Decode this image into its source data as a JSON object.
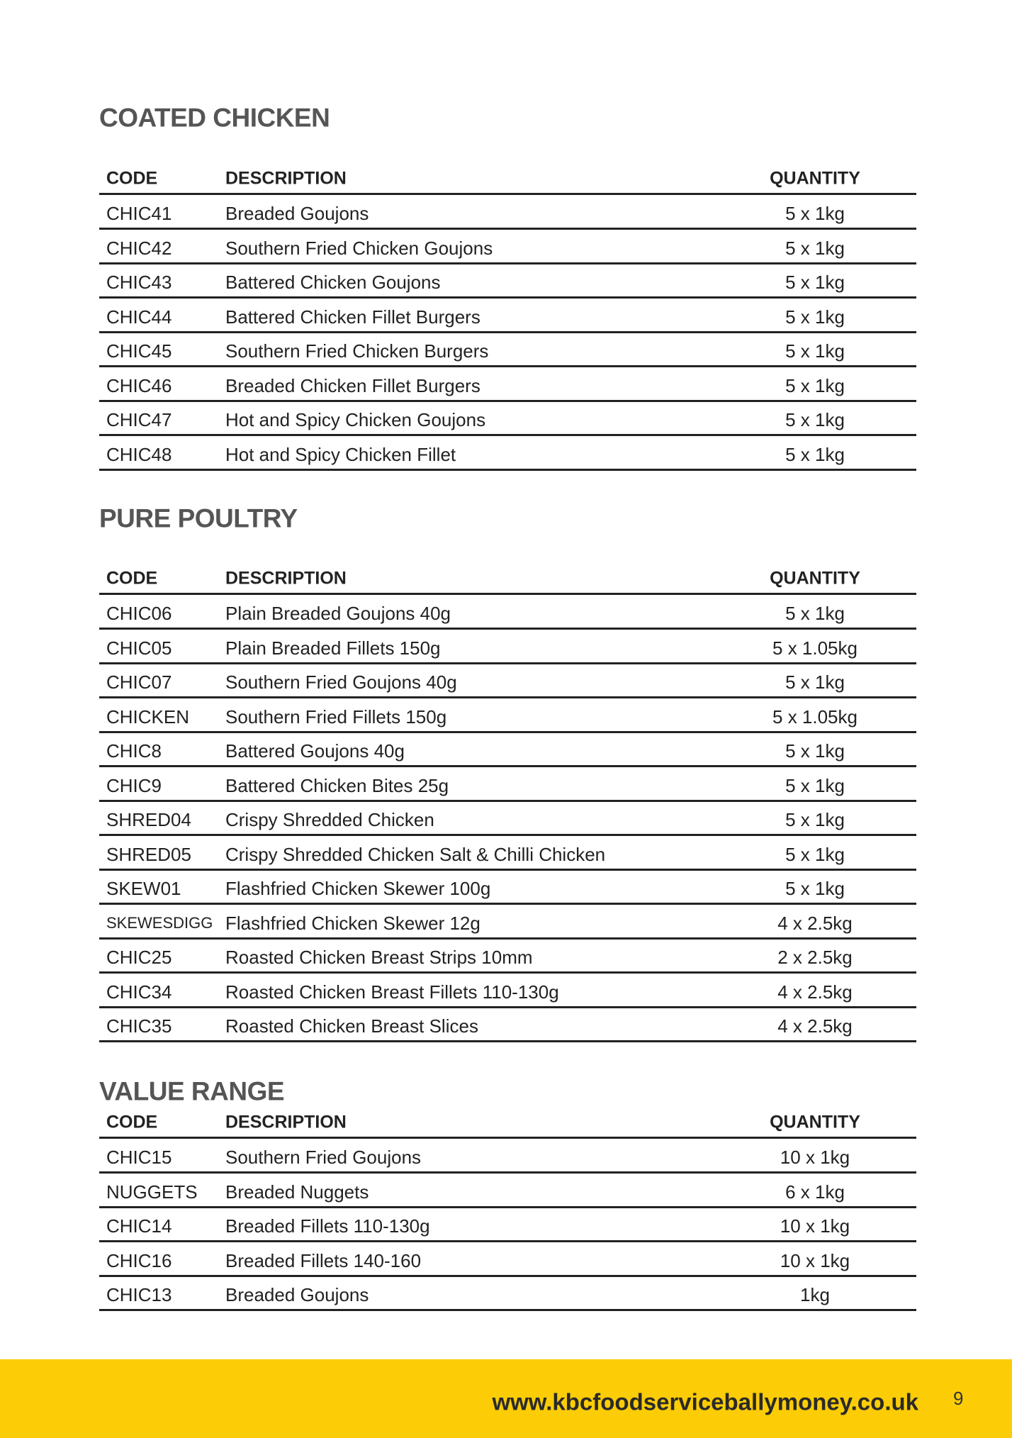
{
  "sections": [
    {
      "title": "COATED CHICKEN",
      "columns": [
        "CODE",
        "DESCRIPTION",
        "QUANTITY"
      ],
      "rows": [
        [
          "CHIC41",
          "Breaded Goujons",
          "5 x 1kg"
        ],
        [
          "CHIC42",
          "Southern Fried Chicken Goujons",
          "5 x 1kg"
        ],
        [
          "CHIC43",
          "Battered Chicken Goujons",
          "5 x 1kg"
        ],
        [
          "CHIC44",
          "Battered Chicken Fillet Burgers",
          "5 x 1kg"
        ],
        [
          "CHIC45",
          "Southern Fried Chicken Burgers",
          "5 x 1kg"
        ],
        [
          "CHIC46",
          "Breaded Chicken Fillet Burgers",
          "5 x 1kg"
        ],
        [
          "CHIC47",
          "Hot and Spicy Chicken Goujons",
          "5 x 1kg"
        ],
        [
          "CHIC48",
          "Hot and Spicy Chicken Fillet",
          "5 x 1kg"
        ]
      ]
    },
    {
      "title": "PURE POULTRY",
      "columns": [
        "CODE",
        "DESCRIPTION",
        "QUANTITY"
      ],
      "rows": [
        [
          "CHIC06",
          "Plain Breaded Goujons 40g",
          "5 x 1kg"
        ],
        [
          "CHIC05",
          "Plain Breaded Fillets 150g",
          "5 x 1.05kg"
        ],
        [
          "CHIC07",
          "Southern Fried Goujons 40g",
          "5 x 1kg"
        ],
        [
          "CHICKEN",
          "Southern Fried Fillets 150g",
          "5 x 1.05kg"
        ],
        [
          "CHIC8",
          "Battered Goujons 40g",
          "5 x 1kg"
        ],
        [
          "CHIC9",
          "Battered Chicken Bites 25g",
          "5 x 1kg"
        ],
        [
          "SHRED04",
          "Crispy Shredded Chicken",
          "5 x 1kg"
        ],
        [
          "SHRED05",
          "Crispy Shredded Chicken Salt & Chilli Chicken",
          "5 x 1kg"
        ],
        [
          "SKEW01",
          "Flashfried Chicken Skewer 100g",
          "5 x 1kg"
        ],
        [
          "SKEWESDIGG",
          "Flashfried Chicken Skewer 12g",
          "4 x 2.5kg"
        ],
        [
          "CHIC25",
          "Roasted Chicken Breast Strips 10mm",
          "2 x 2.5kg"
        ],
        [
          "CHIC34",
          "Roasted Chicken Breast Fillets 110-130g",
          "4 x 2.5kg"
        ],
        [
          "CHIC35",
          "Roasted Chicken Breast Slices",
          "4 x 2.5kg"
        ]
      ]
    },
    {
      "title": "VALUE RANGE",
      "columns": [
        "CODE",
        "DESCRIPTION",
        "QUANTITY"
      ],
      "rows": [
        [
          "CHIC15",
          "Southern Fried Goujons",
          "10 x 1kg"
        ],
        [
          "NUGGETS",
          "Breaded Nuggets",
          "6 x 1kg"
        ],
        [
          "CHIC14",
          "Breaded Fillets 110-130g",
          "10 x 1kg"
        ],
        [
          "CHIC16",
          "Breaded Fillets 140-160",
          "10 x 1kg"
        ],
        [
          "CHIC13",
          "Breaded Goujons",
          "1kg"
        ]
      ]
    }
  ],
  "footer": {
    "url": "www.kbcfoodserviceballymoney.co.uk",
    "page": "9"
  }
}
